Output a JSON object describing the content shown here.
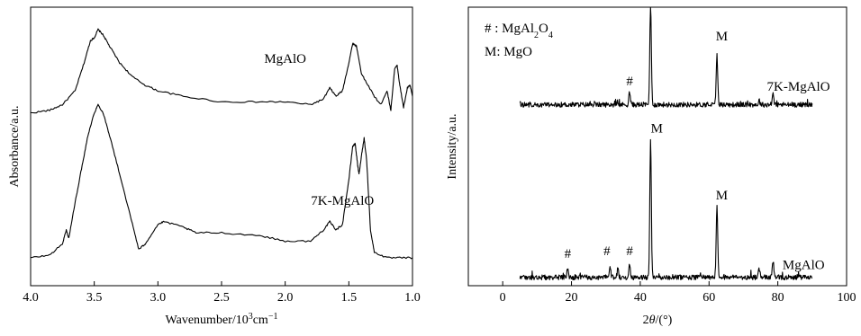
{
  "chart_data": [
    {
      "type": "line",
      "xlabel_main": "Wavenumber/10",
      "xlabel_sup": "3",
      "xlabel_tail": "cm",
      "xlabel_sup2": "−1",
      "ylabel": "Absorbance/a.u.",
      "xlim": [
        4.0,
        1.0
      ],
      "x_reversed": true,
      "x_ticks": [
        "4.0",
        "3.5",
        "3.0",
        "2.5",
        "2.0",
        "1.5",
        "1.0"
      ],
      "y_ticks": [],
      "grid": false,
      "series": [
        {
          "name": "MgAlO",
          "baseline": 0.62,
          "points": [
            [
              4.0,
              0.62
            ],
            [
              3.85,
              0.63
            ],
            [
              3.75,
              0.65
            ],
            [
              3.65,
              0.7
            ],
            [
              3.58,
              0.8
            ],
            [
              3.53,
              0.88
            ],
            [
              3.5,
              0.89
            ],
            [
              3.47,
              0.92
            ],
            [
              3.43,
              0.9
            ],
            [
              3.38,
              0.86
            ],
            [
              3.3,
              0.8
            ],
            [
              3.2,
              0.75
            ],
            [
              3.1,
              0.72
            ],
            [
              3.0,
              0.7
            ],
            [
              2.8,
              0.68
            ],
            [
              2.5,
              0.66
            ],
            [
              2.2,
              0.66
            ],
            [
              2.0,
              0.66
            ],
            [
              1.8,
              0.65
            ],
            [
              1.7,
              0.67
            ],
            [
              1.65,
              0.71
            ],
            [
              1.6,
              0.68
            ],
            [
              1.55,
              0.7
            ],
            [
              1.5,
              0.8
            ],
            [
              1.47,
              0.87
            ],
            [
              1.44,
              0.86
            ],
            [
              1.4,
              0.76
            ],
            [
              1.35,
              0.72
            ],
            [
              1.3,
              0.68
            ],
            [
              1.25,
              0.65
            ],
            [
              1.2,
              0.7
            ],
            [
              1.17,
              0.63
            ],
            [
              1.14,
              0.78
            ],
            [
              1.12,
              0.79
            ],
            [
              1.1,
              0.72
            ],
            [
              1.07,
              0.64
            ],
            [
              1.04,
              0.71
            ],
            [
              1.02,
              0.72
            ],
            [
              1.0,
              0.68
            ]
          ]
        },
        {
          "name": "7K-MgAlO",
          "baseline": 0.1,
          "points": [
            [
              4.0,
              0.1
            ],
            [
              3.85,
              0.11
            ],
            [
              3.75,
              0.15
            ],
            [
              3.72,
              0.2
            ],
            [
              3.7,
              0.17
            ],
            [
              3.65,
              0.3
            ],
            [
              3.6,
              0.42
            ],
            [
              3.55,
              0.54
            ],
            [
              3.5,
              0.62
            ],
            [
              3.47,
              0.65
            ],
            [
              3.43,
              0.62
            ],
            [
              3.38,
              0.54
            ],
            [
              3.3,
              0.4
            ],
            [
              3.2,
              0.22
            ],
            [
              3.15,
              0.13
            ],
            [
              3.1,
              0.15
            ],
            [
              3.0,
              0.22
            ],
            [
              2.95,
              0.23
            ],
            [
              2.8,
              0.21
            ],
            [
              2.7,
              0.19
            ],
            [
              2.5,
              0.19
            ],
            [
              2.2,
              0.18
            ],
            [
              2.0,
              0.16
            ],
            [
              1.8,
              0.16
            ],
            [
              1.7,
              0.2
            ],
            [
              1.65,
              0.23
            ],
            [
              1.6,
              0.2
            ],
            [
              1.55,
              0.22
            ],
            [
              1.5,
              0.38
            ],
            [
              1.47,
              0.5
            ],
            [
              1.45,
              0.51
            ],
            [
              1.43,
              0.43
            ],
            [
              1.42,
              0.4
            ],
            [
              1.4,
              0.47
            ],
            [
              1.38,
              0.53
            ],
            [
              1.36,
              0.45
            ],
            [
              1.33,
              0.2
            ],
            [
              1.3,
              0.12
            ],
            [
              1.2,
              0.1
            ],
            [
              1.1,
              0.1
            ],
            [
              1.0,
              0.1
            ]
          ]
        }
      ],
      "annotations": [
        {
          "text": "MgAlO",
          "x": 2.0,
          "y": 0.8
        },
        {
          "text": "7K-MgAlO",
          "x": 1.55,
          "y": 0.29
        }
      ]
    },
    {
      "type": "line",
      "xlabel_theta": "θ",
      "xlabel_prefix": "2",
      "xlabel_tail": "/(°)",
      "ylabel": "Intensity/a.u.",
      "xlim": [
        -10,
        100
      ],
      "x_ticks": [
        0,
        20,
        40,
        60,
        80,
        100
      ],
      "grid": false,
      "legend": {
        "placement": "top-left",
        "entries": [
          {
            "symbol": "#",
            "sep": " : ",
            "formula_parts": [
              "MgAl",
              "2",
              "O",
              "4"
            ]
          },
          {
            "symbol": "M",
            "sep": ":  ",
            "formula_parts": [
              "MgO"
            ]
          }
        ]
      },
      "series": [
        {
          "name": "7K-MgAlO",
          "x_range": [
            5,
            90
          ],
          "baseline": 0.65,
          "peaks": [
            [
              36.9,
              0.045
            ],
            [
              43.0,
              0.36
            ],
            [
              62.3,
              0.18
            ],
            [
              78.6,
              0.04
            ],
            [
              74.6,
              0.015
            ]
          ],
          "labels": [
            {
              "text": "#",
              "x": 36.9,
              "y": 0.72
            },
            {
              "text": "M",
              "x": 44.8,
              "y": 1.03
            },
            {
              "text": "M",
              "x": 63.7,
              "y": 0.88
            }
          ]
        },
        {
          "name": "MgAlO",
          "x_range": [
            5,
            90
          ],
          "baseline": 0.03,
          "peaks": [
            [
              18.9,
              0.03
            ],
            [
              31.2,
              0.04
            ],
            [
              33.5,
              0.03
            ],
            [
              36.9,
              0.05
            ],
            [
              43.0,
              0.49
            ],
            [
              62.3,
              0.26
            ],
            [
              74.6,
              0.03
            ],
            [
              78.6,
              0.06
            ]
          ],
          "labels": [
            {
              "text": "#",
              "x": 18.9,
              "y": 0.1
            },
            {
              "text": "#",
              "x": 30.3,
              "y": 0.11
            },
            {
              "text": "#",
              "x": 36.9,
              "y": 0.11
            },
            {
              "text": "M",
              "x": 44.8,
              "y": 0.55
            },
            {
              "text": "M",
              "x": 63.7,
              "y": 0.31
            }
          ]
        }
      ],
      "annotations": [
        {
          "text": "7K-MgAlO",
          "x": 86,
          "y": 0.7
        },
        {
          "text": "MgAlO",
          "x": 87.5,
          "y": 0.06
        }
      ]
    }
  ]
}
